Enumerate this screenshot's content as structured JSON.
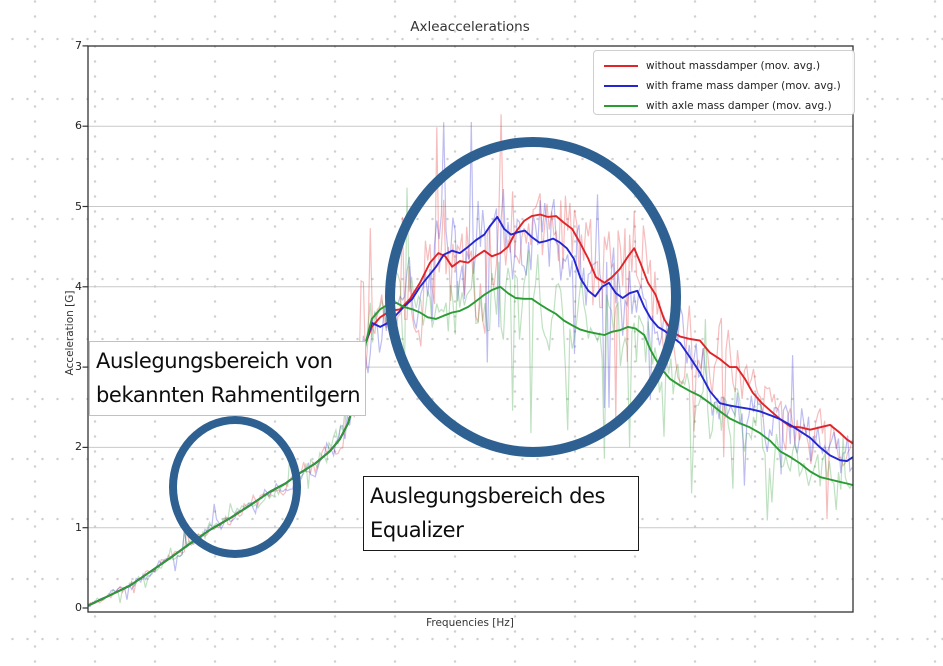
{
  "chart": {
    "title": "Axleaccelerations",
    "xlabel": "Frequencies [Hz]",
    "ylabel": "Acceleration [G]",
    "y_ticks": [
      "0",
      "1",
      "2",
      "3",
      "4",
      "5",
      "6",
      "7"
    ]
  },
  "chart_data": {
    "type": "line",
    "title": "Axleaccelerations",
    "xlabel": "Frequencies [Hz]",
    "ylabel": "Acceleration [G]",
    "ylim": [
      0,
      7
    ],
    "yticks": [
      0,
      1,
      2,
      3,
      4,
      5,
      6,
      7
    ],
    "x_axis_note": "x axis has no tick labels; point x given as percent of axis width",
    "grid": "horizontal solid light gray",
    "legend_position": "upper right",
    "series": [
      {
        "name": "without massdamper (mov. avg.)",
        "color": "#e02428",
        "points": [
          [
            0,
            0.03
          ],
          [
            2.9,
            0.16
          ],
          [
            5.5,
            0.28
          ],
          [
            8.1,
            0.45
          ],
          [
            10.7,
            0.62
          ],
          [
            13.3,
            0.8
          ],
          [
            15.9,
            0.97
          ],
          [
            18.6,
            1.12
          ],
          [
            21.2,
            1.28
          ],
          [
            23.8,
            1.45
          ],
          [
            25.8,
            1.55
          ],
          [
            27.7,
            1.68
          ],
          [
            29.7,
            1.8
          ],
          [
            31.6,
            1.95
          ],
          [
            32.9,
            2.1
          ],
          [
            34,
            2.3
          ],
          [
            34.9,
            2.6
          ],
          [
            35.7,
            3.0
          ],
          [
            36.3,
            3.3
          ],
          [
            37.1,
            3.5
          ],
          [
            38.2,
            3.62
          ],
          [
            39.5,
            3.7
          ],
          [
            40.8,
            3.72
          ],
          [
            42.1,
            3.85
          ],
          [
            43.4,
            4.05
          ],
          [
            44.7,
            4.3
          ],
          [
            45.8,
            4.42
          ],
          [
            46.7,
            4.38
          ],
          [
            47.6,
            4.25
          ],
          [
            48.6,
            4.32
          ],
          [
            49.7,
            4.3
          ],
          [
            50.7,
            4.38
          ],
          [
            51.8,
            4.45
          ],
          [
            52.8,
            4.38
          ],
          [
            53.9,
            4.42
          ],
          [
            54.9,
            4.5
          ],
          [
            55.9,
            4.68
          ],
          [
            57,
            4.82
          ],
          [
            58,
            4.88
          ],
          [
            59.1,
            4.9
          ],
          [
            60.1,
            4.87
          ],
          [
            61.2,
            4.88
          ],
          [
            62.2,
            4.8
          ],
          [
            63.3,
            4.72
          ],
          [
            64.3,
            4.55
          ],
          [
            65.4,
            4.35
          ],
          [
            66.4,
            4.12
          ],
          [
            67.5,
            4.05
          ],
          [
            68.5,
            4.12
          ],
          [
            69.5,
            4.22
          ],
          [
            70.6,
            4.38
          ],
          [
            71.4,
            4.48
          ],
          [
            72.2,
            4.3
          ],
          [
            73.2,
            4.05
          ],
          [
            74.2,
            3.9
          ],
          [
            75.3,
            3.6
          ],
          [
            76.3,
            3.45
          ],
          [
            77.4,
            3.38
          ],
          [
            78.7,
            3.35
          ],
          [
            80,
            3.33
          ],
          [
            81.3,
            3.18
          ],
          [
            82.6,
            3.1
          ],
          [
            83.9,
            3.0
          ],
          [
            84.8,
            3.0
          ],
          [
            85.9,
            2.85
          ],
          [
            86.9,
            2.68
          ],
          [
            88.1,
            2.55
          ],
          [
            89.3,
            2.45
          ],
          [
            90.5,
            2.35
          ],
          [
            91.8,
            2.26
          ],
          [
            93.1,
            2.25
          ],
          [
            94.4,
            2.22
          ],
          [
            95.7,
            2.25
          ],
          [
            97,
            2.28
          ],
          [
            98.3,
            2.18
          ],
          [
            99.2,
            2.1
          ],
          [
            100,
            2.05
          ]
        ]
      },
      {
        "name": "with frame mass damper (mov. avg.)",
        "color": "#2326d2",
        "points": [
          [
            0,
            0.03
          ],
          [
            2.9,
            0.16
          ],
          [
            5.5,
            0.28
          ],
          [
            8.1,
            0.45
          ],
          [
            10.7,
            0.62
          ],
          [
            13.3,
            0.8
          ],
          [
            15.9,
            0.97
          ],
          [
            18.6,
            1.12
          ],
          [
            21.2,
            1.28
          ],
          [
            23.8,
            1.45
          ],
          [
            25.8,
            1.55
          ],
          [
            27.7,
            1.68
          ],
          [
            29.7,
            1.8
          ],
          [
            31.6,
            1.95
          ],
          [
            32.9,
            2.1
          ],
          [
            34,
            2.3
          ],
          [
            34.9,
            2.6
          ],
          [
            35.7,
            3.0
          ],
          [
            36.3,
            3.3
          ],
          [
            37.1,
            3.55
          ],
          [
            38.2,
            3.5
          ],
          [
            39.2,
            3.55
          ],
          [
            40.3,
            3.65
          ],
          [
            41.3,
            3.75
          ],
          [
            42.4,
            3.85
          ],
          [
            43.4,
            4.0
          ],
          [
            44.4,
            4.12
          ],
          [
            45.5,
            4.25
          ],
          [
            46.5,
            4.4
          ],
          [
            47.6,
            4.45
          ],
          [
            48.6,
            4.42
          ],
          [
            49.7,
            4.5
          ],
          [
            50.7,
            4.58
          ],
          [
            51.8,
            4.65
          ],
          [
            52.5,
            4.75
          ],
          [
            53.5,
            4.87
          ],
          [
            54.4,
            4.72
          ],
          [
            55.3,
            4.65
          ],
          [
            56.2,
            4.68
          ],
          [
            57.1,
            4.7
          ],
          [
            58,
            4.62
          ],
          [
            59,
            4.55
          ],
          [
            59.9,
            4.57
          ],
          [
            60.8,
            4.6
          ],
          [
            61.7,
            4.55
          ],
          [
            62.6,
            4.48
          ],
          [
            63.5,
            4.35
          ],
          [
            64.4,
            4.1
          ],
          [
            65.4,
            3.95
          ],
          [
            66.3,
            3.88
          ],
          [
            67.2,
            4.0
          ],
          [
            68.1,
            4.05
          ],
          [
            69,
            3.92
          ],
          [
            69.9,
            3.86
          ],
          [
            70.8,
            3.92
          ],
          [
            71.8,
            3.95
          ],
          [
            72.7,
            3.75
          ],
          [
            73.6,
            3.6
          ],
          [
            74.5,
            3.5
          ],
          [
            75.4,
            3.45
          ],
          [
            76.3,
            3.38
          ],
          [
            77.4,
            3.3
          ],
          [
            78.7,
            3.12
          ],
          [
            80,
            2.93
          ],
          [
            81.3,
            2.7
          ],
          [
            82.6,
            2.55
          ],
          [
            83.9,
            2.52
          ],
          [
            85.2,
            2.5
          ],
          [
            86.5,
            2.48
          ],
          [
            87.8,
            2.45
          ],
          [
            89.2,
            2.4
          ],
          [
            90.5,
            2.35
          ],
          [
            91.8,
            2.28
          ],
          [
            93.1,
            2.2
          ],
          [
            94.4,
            2.12
          ],
          [
            95.7,
            2.0
          ],
          [
            97,
            1.9
          ],
          [
            98.3,
            1.84
          ],
          [
            99.2,
            1.83
          ],
          [
            100,
            1.88
          ]
        ]
      },
      {
        "name": "with axle mass damper (mov. avg.)",
        "color": "#2b9b33",
        "points": [
          [
            0,
            0.03
          ],
          [
            2.9,
            0.16
          ],
          [
            5.5,
            0.28
          ],
          [
            8.1,
            0.45
          ],
          [
            10.7,
            0.62
          ],
          [
            13.3,
            0.8
          ],
          [
            15.9,
            0.97
          ],
          [
            18.6,
            1.12
          ],
          [
            21.2,
            1.28
          ],
          [
            23.8,
            1.45
          ],
          [
            25.8,
            1.55
          ],
          [
            27.7,
            1.68
          ],
          [
            29.7,
            1.8
          ],
          [
            31.6,
            1.95
          ],
          [
            32.9,
            2.1
          ],
          [
            34,
            2.3
          ],
          [
            34.9,
            2.6
          ],
          [
            35.7,
            3.0
          ],
          [
            36.3,
            3.3
          ],
          [
            37.1,
            3.6
          ],
          [
            38.2,
            3.72
          ],
          [
            39.2,
            3.78
          ],
          [
            40.3,
            3.8
          ],
          [
            41.3,
            3.75
          ],
          [
            42.4,
            3.72
          ],
          [
            43.4,
            3.68
          ],
          [
            44.4,
            3.62
          ],
          [
            45.5,
            3.6
          ],
          [
            46.5,
            3.64
          ],
          [
            47.6,
            3.68
          ],
          [
            48.6,
            3.7
          ],
          [
            49.7,
            3.75
          ],
          [
            50.7,
            3.82
          ],
          [
            51.8,
            3.9
          ],
          [
            52.8,
            3.96
          ],
          [
            53.9,
            4.0
          ],
          [
            54.9,
            3.92
          ],
          [
            55.9,
            3.86
          ],
          [
            57,
            3.85
          ],
          [
            58,
            3.85
          ],
          [
            59.1,
            3.78
          ],
          [
            60.1,
            3.72
          ],
          [
            61.2,
            3.66
          ],
          [
            62.2,
            3.58
          ],
          [
            63.3,
            3.52
          ],
          [
            64.3,
            3.47
          ],
          [
            65.4,
            3.44
          ],
          [
            66.4,
            3.42
          ],
          [
            67.5,
            3.4
          ],
          [
            68.5,
            3.44
          ],
          [
            69.5,
            3.46
          ],
          [
            70.6,
            3.5
          ],
          [
            71.6,
            3.48
          ],
          [
            72.7,
            3.4
          ],
          [
            73.5,
            3.22
          ],
          [
            74.2,
            3.1
          ],
          [
            75.2,
            2.95
          ],
          [
            76.1,
            2.85
          ],
          [
            77.4,
            2.77
          ],
          [
            78.7,
            2.7
          ],
          [
            80,
            2.64
          ],
          [
            81.3,
            2.55
          ],
          [
            82.6,
            2.45
          ],
          [
            83.9,
            2.36
          ],
          [
            85.2,
            2.3
          ],
          [
            86.5,
            2.25
          ],
          [
            87.8,
            2.18
          ],
          [
            89.2,
            2.08
          ],
          [
            90.5,
            1.95
          ],
          [
            91.8,
            1.88
          ],
          [
            93.1,
            1.8
          ],
          [
            94.4,
            1.7
          ],
          [
            95.7,
            1.63
          ],
          [
            97,
            1.6
          ],
          [
            98.3,
            1.57
          ],
          [
            99.2,
            1.55
          ],
          [
            100,
            1.53
          ]
        ]
      }
    ],
    "raw_overlays": [
      {
        "base_series": 0,
        "style": "raw signal, same hue at 30% opacity",
        "seed": 11,
        "amp": [
          [
            0,
            0.05
          ],
          [
            13,
            0.09
          ],
          [
            26,
            0.13
          ],
          [
            32,
            0.2
          ],
          [
            34.5,
            0.35
          ],
          [
            36.5,
            0.55
          ],
          [
            40,
            0.75
          ],
          [
            48,
            0.85
          ],
          [
            56,
            0.95
          ],
          [
            64,
            0.9
          ],
          [
            70,
            0.85
          ],
          [
            78,
            0.6
          ],
          [
            88,
            0.55
          ],
          [
            100,
            0.45
          ]
        ]
      },
      {
        "base_series": 1,
        "style": "raw signal, same hue at 30% opacity",
        "seed": 23,
        "amp": [
          [
            0,
            0.06
          ],
          [
            13,
            0.11
          ],
          [
            26,
            0.17
          ],
          [
            32,
            0.24
          ],
          [
            34.5,
            0.4
          ],
          [
            36.5,
            0.6
          ],
          [
            42,
            0.75
          ],
          [
            52,
            0.8
          ],
          [
            62,
            0.72
          ],
          [
            72,
            0.6
          ],
          [
            82,
            0.5
          ],
          [
            100,
            0.42
          ]
        ]
      },
      {
        "base_series": 2,
        "style": "raw signal, same hue at 30% opacity",
        "seed": 37,
        "amp": [
          [
            0,
            0.05
          ],
          [
            13,
            0.09
          ],
          [
            26,
            0.15
          ],
          [
            32,
            0.22
          ],
          [
            34.5,
            0.35
          ],
          [
            36.5,
            0.55
          ],
          [
            44,
            0.68
          ],
          [
            54,
            0.75
          ],
          [
            64,
            0.7
          ],
          [
            74,
            0.58
          ],
          [
            85,
            0.5
          ],
          [
            100,
            0.4
          ]
        ]
      }
    ]
  },
  "annotations": {
    "box1": {
      "lines": [
        "Auslegungsbereich von",
        "bekannten Rahmentilgern"
      ],
      "border_color": "#a9c6e8"
    },
    "box2": {
      "lines": [
        "Auslegungsbereich des",
        "Equalizer"
      ],
      "border_color": "#1a1a1a"
    },
    "circles": {
      "color": "#2e6191"
    }
  },
  "colors": {
    "grid": "#c9c9c9",
    "spine": "#333333",
    "paper_dots": "#d0d0d0"
  }
}
